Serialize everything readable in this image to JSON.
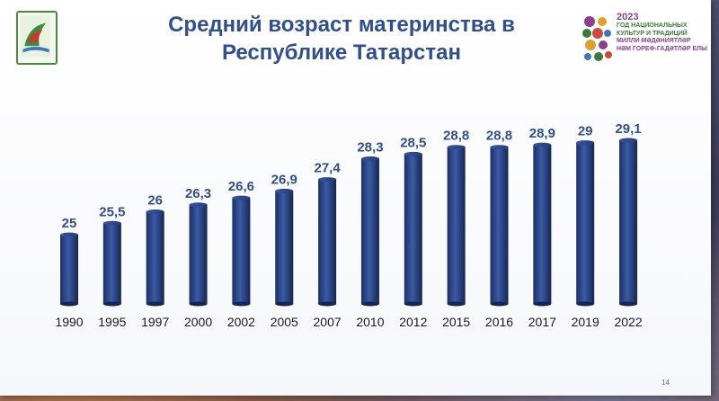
{
  "slide": {
    "title_line1": "Средний возраст материнства в",
    "title_line2": "Республике Татарстан",
    "page_number": "14",
    "title_color": "#2f4f8f",
    "bar_color": "#2b4a8f"
  },
  "badge": {
    "year": "2023",
    "lines_ru": [
      "ГОД НАЦИОНАЛЬНЫХ",
      "КУЛЬТУР И ТРАДИЦИЙ"
    ],
    "lines_tt": [
      "МИЛЛИ МӘДӘНИЯТЛӘР",
      "HӘМ ГОРЕФ-ГАДӘТЛӘР ЕЛЫ"
    ]
  },
  "chart_data": {
    "type": "bar",
    "title": "Средний возраст материнства в Республике Татарстан",
    "categories": [
      "1990",
      "1995",
      "1997",
      "2000",
      "2002",
      "2005",
      "2007",
      "2010",
      "2012",
      "2015",
      "2016",
      "2017",
      "2019",
      "2022"
    ],
    "values": [
      25,
      25.5,
      26,
      26.3,
      26.6,
      26.9,
      27.4,
      28.3,
      28.5,
      28.8,
      28.8,
      28.9,
      29,
      29.1
    ],
    "value_labels": [
      "25",
      "25,5",
      "26",
      "26,3",
      "26,6",
      "26,9",
      "27,4",
      "28,3",
      "28,5",
      "28,8",
      "28,8",
      "28,9",
      "29",
      "29,1"
    ],
    "xlabel": "",
    "ylabel": "",
    "ylim": [
      22,
      29.1
    ],
    "grid": false,
    "legend": "none"
  }
}
